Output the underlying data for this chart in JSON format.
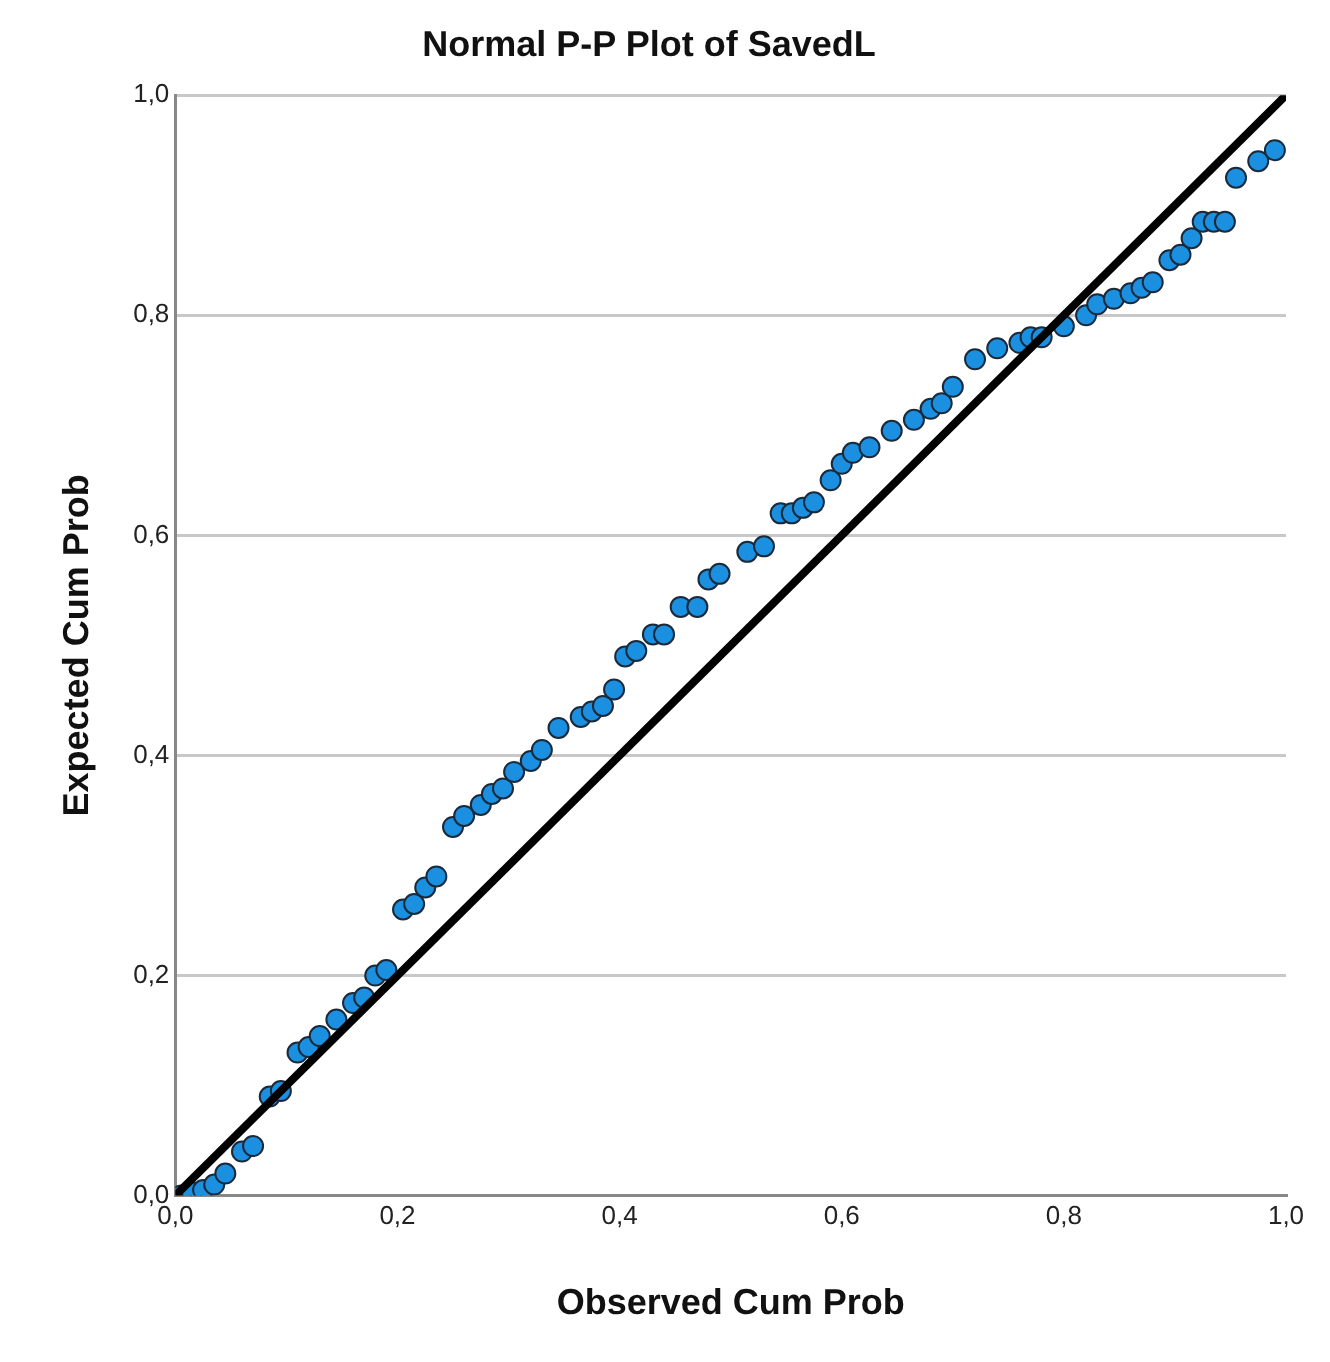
{
  "chart_data": {
    "type": "scatter",
    "title": "Normal P-P Plot of SavedL",
    "xlabel": "Observed Cum Prob",
    "ylabel": "Expected Cum Prob",
    "xlim": [
      0,
      1
    ],
    "ylim": [
      0,
      1
    ],
    "xticks": [
      {
        "value": 0,
        "label": "0,0"
      },
      {
        "value": 0.2,
        "label": "0,2"
      },
      {
        "value": 0.4,
        "label": "0,4"
      },
      {
        "value": 0.6,
        "label": "0,6"
      },
      {
        "value": 0.8,
        "label": "0,8"
      },
      {
        "value": 1,
        "label": "1,0"
      }
    ],
    "yticks": [
      {
        "value": 0,
        "label": "0,0"
      },
      {
        "value": 0.2,
        "label": "0,2"
      },
      {
        "value": 0.4,
        "label": "0,4"
      },
      {
        "value": 0.6,
        "label": "0,6"
      },
      {
        "value": 0.8,
        "label": "0,8"
      },
      {
        "value": 1,
        "label": "1,0"
      }
    ],
    "grid": "y",
    "legend": false,
    "marker": "circle",
    "series": [
      {
        "type": "line",
        "color": "#000000",
        "marker": "none",
        "x": [
          0,
          1
        ],
        "values": [
          0,
          1
        ]
      },
      {
        "color": "#1b8fe0",
        "x": [
          0.005,
          0.015,
          0.025,
          0.035,
          0.045,
          0.06,
          0.07,
          0.085,
          0.095,
          0.11,
          0.12,
          0.13,
          0.145,
          0.16,
          0.17,
          0.18,
          0.19,
          0.205,
          0.215,
          0.225,
          0.235,
          0.25,
          0.26,
          0.275,
          0.285,
          0.295,
          0.305,
          0.32,
          0.33,
          0.345,
          0.365,
          0.375,
          0.385,
          0.395,
          0.405,
          0.415,
          0.43,
          0.44,
          0.455,
          0.47,
          0.48,
          0.49,
          0.515,
          0.53,
          0.545,
          0.555,
          0.565,
          0.575,
          0.59,
          0.6,
          0.61,
          0.625,
          0.645,
          0.665,
          0.68,
          0.69,
          0.7,
          0.72,
          0.74,
          0.76,
          0.77,
          0.78,
          0.8,
          0.82,
          0.83,
          0.845,
          0.86,
          0.87,
          0.88,
          0.895,
          0.905,
          0.915,
          0.925,
          0.935,
          0.945,
          0.955,
          0.975,
          0.99
        ],
        "values": [
          0,
          0.003,
          0.005,
          0.01,
          0.02,
          0.04,
          0.045,
          0.09,
          0.095,
          0.13,
          0.135,
          0.145,
          0.16,
          0.175,
          0.18,
          0.2,
          0.205,
          0.26,
          0.265,
          0.28,
          0.29,
          0.335,
          0.345,
          0.355,
          0.365,
          0.37,
          0.385,
          0.395,
          0.405,
          0.425,
          0.435,
          0.44,
          0.445,
          0.46,
          0.49,
          0.495,
          0.51,
          0.51,
          0.535,
          0.535,
          0.56,
          0.565,
          0.585,
          0.59,
          0.62,
          0.62,
          0.625,
          0.63,
          0.65,
          0.665,
          0.675,
          0.68,
          0.695,
          0.705,
          0.715,
          0.72,
          0.735,
          0.76,
          0.77,
          0.775,
          0.78,
          0.78,
          0.79,
          0.8,
          0.81,
          0.815,
          0.82,
          0.825,
          0.83,
          0.85,
          0.855,
          0.87,
          0.885,
          0.885,
          0.885,
          0.925,
          0.94,
          0.95
        ]
      }
    ]
  }
}
